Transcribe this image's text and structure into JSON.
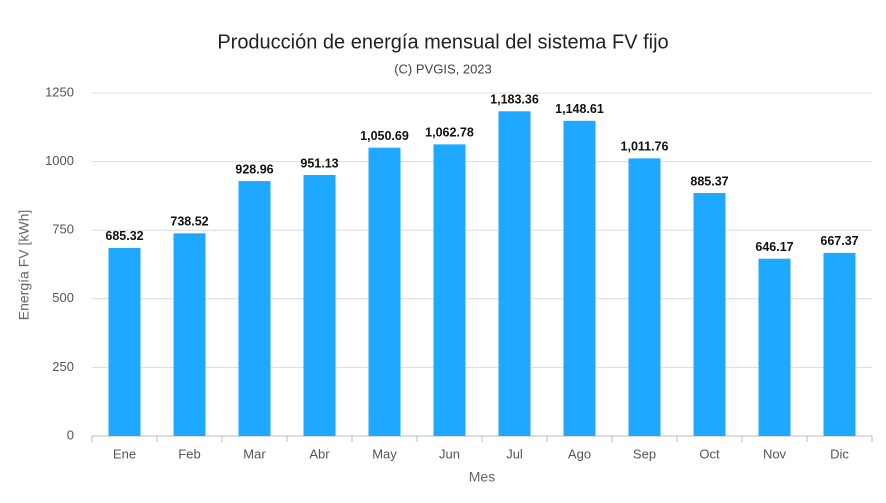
{
  "chart_data": {
    "type": "bar",
    "title": "Producción de energía mensual del sistema FV fijo",
    "subtitle": "(C) PVGIS, 2023",
    "x_label": "Mes",
    "y_label": "Energía FV [kWh]",
    "categories": [
      "Ene",
      "Feb",
      "Mar",
      "Abr",
      "May",
      "Jun",
      "Jul",
      "Ago",
      "Sep",
      "Oct",
      "Nov",
      "Dic"
    ],
    "values": [
      685.32,
      738.52,
      928.96,
      951.13,
      1050.69,
      1062.78,
      1183.36,
      1148.61,
      1011.76,
      885.37,
      646.17,
      667.37
    ],
    "value_labels": [
      "685.32",
      "738.52",
      "928.96",
      "951.13",
      "1,050.69",
      "1,062.78",
      "1,183.36",
      "1,148.61",
      "1,011.76",
      "885.37",
      "646.17",
      "667.37"
    ],
    "color": "#1fa8ff",
    "ylim": [
      0,
      1250
    ],
    "yticks": [
      0,
      250,
      500,
      750,
      1000,
      1250
    ],
    "grid": true
  }
}
